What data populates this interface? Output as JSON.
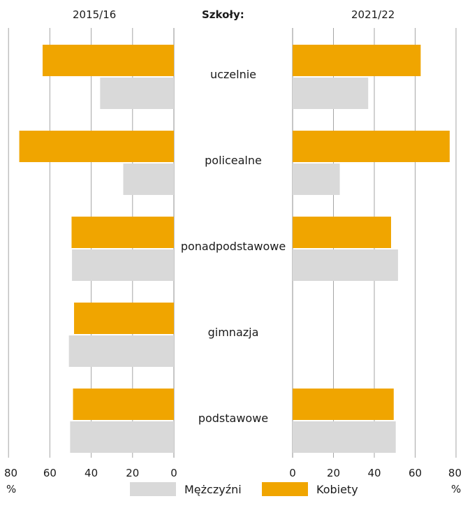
{
  "chart_data": {
    "type": "bar",
    "orientation": "horizontal",
    "layout": "butterfly",
    "header": "Szkoły:",
    "categories": [
      "uczelnie",
      "policealne",
      "ponadpodstawowe",
      "gimnazja",
      "podstawowe"
    ],
    "panels": [
      {
        "title": "2015/16",
        "direction": "leftward",
        "xlim": [
          0,
          80
        ],
        "xticks": [
          "80",
          "60",
          "40",
          "20",
          "0"
        ],
        "unit": "%",
        "series": [
          {
            "name": "Kobiety",
            "values": [
              63.5,
              74.8,
              49.5,
              48.3,
              48.8
            ]
          },
          {
            "name": "Mężczyźni",
            "values": [
              35.7,
              24.5,
              49.3,
              50.8,
              50.2
            ]
          }
        ]
      },
      {
        "title": "2021/22",
        "direction": "rightward",
        "xlim": [
          0,
          80
        ],
        "xticks": [
          "0",
          "20",
          "40",
          "60",
          "80"
        ],
        "unit": "%",
        "series": [
          {
            "name": "Kobiety",
            "values": [
              62.7,
              76.9,
              48.2,
              null,
              49.5
            ]
          },
          {
            "name": "Mężczyźni",
            "values": [
              37.0,
              23.1,
              51.6,
              null,
              50.5
            ]
          }
        ]
      }
    ],
    "grid": true,
    "colors": {
      "Kobiety": "#f0a500",
      "Mężczyźni": "#d9d9d9"
    },
    "legend": {
      "position": "bottom",
      "items": [
        "Mężczyźni",
        "Kobiety"
      ]
    }
  }
}
